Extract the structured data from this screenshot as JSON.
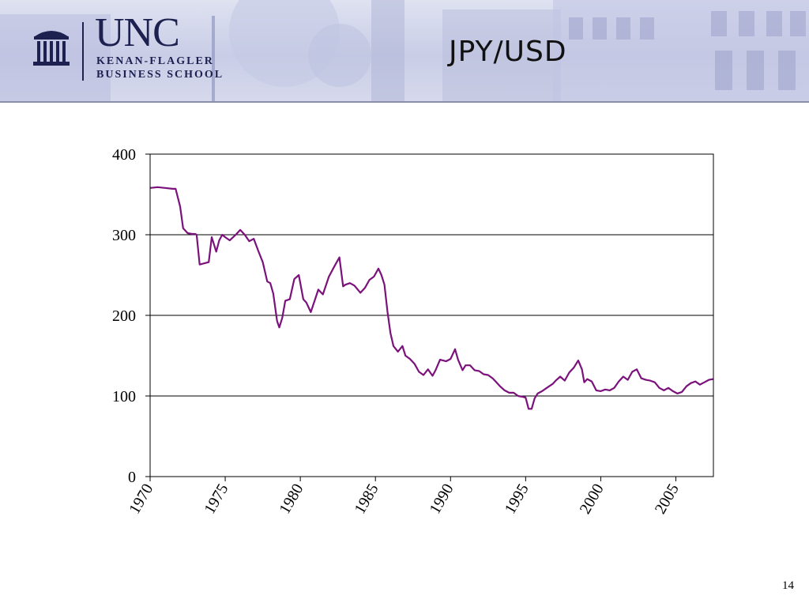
{
  "header": {
    "logo_unc": "UNC",
    "logo_line1": "KENAN-FLAGLER",
    "logo_line2": "BUSINESS SCHOOL",
    "title": "JPY/USD"
  },
  "page_number": "14",
  "colors": {
    "series": "#7b127b",
    "logo": "#1c2150",
    "header_bg": "#c9cde6"
  },
  "chart_data": {
    "type": "line",
    "title": "",
    "xlabel": "",
    "ylabel": "",
    "xlim": [
      1970,
      2007.5
    ],
    "ylim": [
      0,
      400
    ],
    "yticks": [
      0,
      100,
      200,
      300,
      400
    ],
    "xticks": [
      1970,
      1975,
      1980,
      1985,
      1990,
      1995,
      2000,
      2005
    ],
    "xtick_labels": [
      "1970",
      "1975",
      "1980",
      "1985",
      "1990",
      "1995",
      "2000",
      "2005"
    ],
    "ytick_labels": [
      "0",
      "100",
      "200",
      "300",
      "400"
    ],
    "grid": "horizontal",
    "legend": "none",
    "series": [
      {
        "x": [
          1970.0,
          1970.5,
          1971.0,
          1971.5,
          1971.7,
          1972.0,
          1972.2,
          1972.5,
          1972.8,
          1973.0,
          1973.1,
          1973.3,
          1973.7,
          1973.9,
          1974.1,
          1974.4,
          1974.6,
          1974.8,
          1975.0,
          1975.3,
          1975.7,
          1976.0,
          1976.3,
          1976.6,
          1976.9,
          1977.2,
          1977.5,
          1977.8,
          1978.0,
          1978.2,
          1978.45,
          1978.6,
          1978.8,
          1979.0,
          1979.3,
          1979.6,
          1979.9,
          1980.2,
          1980.4,
          1980.7,
          1980.95,
          1981.2,
          1981.5,
          1981.9,
          1982.3,
          1982.6,
          1982.85,
          1983.0,
          1983.3,
          1983.6,
          1984.0,
          1984.3,
          1984.6,
          1984.9,
          1985.2,
          1985.4,
          1985.6,
          1985.8,
          1986.0,
          1986.2,
          1986.5,
          1986.8,
          1987.0,
          1987.3,
          1987.6,
          1987.9,
          1988.2,
          1988.5,
          1988.8,
          1989.0,
          1989.3,
          1989.7,
          1990.0,
          1990.3,
          1990.5,
          1990.8,
          1991.0,
          1991.3,
          1991.6,
          1991.9,
          1992.2,
          1992.5,
          1992.8,
          1993.0,
          1993.3,
          1993.6,
          1993.9,
          1994.2,
          1994.5,
          1994.8,
          1995.0,
          1995.2,
          1995.4,
          1995.6,
          1995.8,
          1996.1,
          1996.4,
          1996.8,
          1997.0,
          1997.3,
          1997.6,
          1997.9,
          1998.2,
          1998.5,
          1998.75,
          1998.9,
          1999.1,
          1999.4,
          1999.7,
          2000.0,
          2000.3,
          2000.6,
          2000.9,
          2001.2,
          2001.5,
          2001.8,
          2002.1,
          2002.4,
          2002.7,
          2003.0,
          2003.3,
          2003.6,
          2003.9,
          2004.2,
          2004.5,
          2004.8,
          2005.1,
          2005.4,
          2005.7,
          2006.0,
          2006.3,
          2006.6,
          2006.9,
          2007.2,
          2007.5
        ],
        "values": [
          358,
          359,
          358,
          357,
          357,
          335,
          308,
          302,
          301,
          301,
          300,
          263,
          265,
          266,
          297,
          279,
          293,
          300,
          297,
          293,
          300,
          306,
          300,
          292,
          295,
          280,
          266,
          242,
          240,
          227,
          193,
          185,
          197,
          218,
          220,
          245,
          250,
          220,
          216,
          204,
          218,
          232,
          226,
          248,
          262,
          272,
          236,
          238,
          240,
          237,
          228,
          234,
          244,
          248,
          258,
          250,
          238,
          205,
          178,
          162,
          155,
          162,
          150,
          146,
          140,
          130,
          126,
          133,
          125,
          132,
          145,
          143,
          146,
          158,
          145,
          132,
          138,
          138,
          132,
          131,
          127,
          126,
          122,
          118,
          112,
          107,
          104,
          104,
          100,
          99,
          98,
          84,
          84,
          97,
          103,
          106,
          110,
          115,
          119,
          124,
          119,
          129,
          135,
          144,
          133,
          117,
          121,
          118,
          107,
          106,
          108,
          107,
          110,
          118,
          124,
          120,
          130,
          133,
          122,
          120,
          119,
          117,
          110,
          107,
          110,
          106,
          103,
          105,
          112,
          116,
          118,
          114,
          117,
          120,
          121
        ]
      }
    ]
  }
}
